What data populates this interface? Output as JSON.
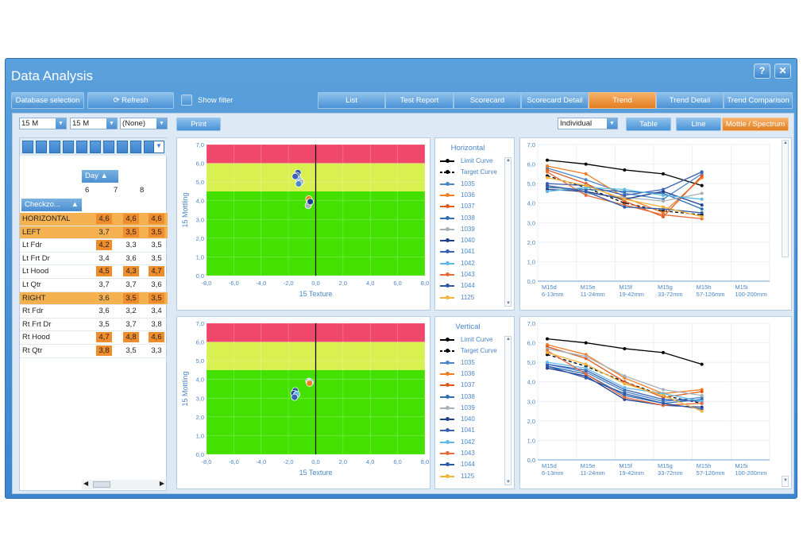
{
  "window": {
    "title": "Data Analysis",
    "help": "?",
    "close": "✕"
  },
  "toolbar": {
    "database_selection": "Database selection",
    "refresh": "Refresh",
    "show_filter": "Show filter"
  },
  "tabs": [
    "List",
    "Test Report",
    "Scorecard",
    "Scorecard Detail",
    "Trend",
    "Trend Detail",
    "Trend Comparison"
  ],
  "active_tab": "Trend",
  "filters": {
    "combo1": "15 M",
    "combo2": "15 M",
    "combo3": "(None)",
    "print": "Print",
    "mode": "Individual",
    "table": "Table",
    "line": "Line",
    "mottle": "Mottle / Spectrum"
  },
  "table": {
    "day_header": "Day",
    "check_header": "Checkzo...",
    "days": [
      "6",
      "7",
      "8"
    ],
    "rows": [
      {
        "label": "HORIZONTAL",
        "values": [
          "4,6",
          "4,6",
          "4,6"
        ],
        "hl": true,
        "or": [
          true,
          true,
          true
        ]
      },
      {
        "label": "LEFT",
        "values": [
          "3,7",
          "3,5",
          "3,5"
        ],
        "hl": true,
        "or": [
          false,
          true,
          true
        ]
      },
      {
        "label": "Lt Fdr",
        "values": [
          "4,2",
          "3,3",
          "3,5"
        ],
        "hl": false,
        "or": [
          true,
          false,
          false
        ]
      },
      {
        "label": "Lt Frt Dr",
        "values": [
          "3,4",
          "3,6",
          "3,5"
        ],
        "hl": false,
        "or": [
          false,
          false,
          false
        ]
      },
      {
        "label": "Lt Hood",
        "values": [
          "4,5",
          "4,3",
          "4,7"
        ],
        "hl": false,
        "or": [
          true,
          true,
          true
        ]
      },
      {
        "label": "Lt Qtr",
        "values": [
          "3,7",
          "3,7",
          "3,6"
        ],
        "hl": false,
        "or": [
          false,
          false,
          false
        ]
      },
      {
        "label": "RIGHT",
        "values": [
          "3,6",
          "3,5",
          "3,5"
        ],
        "hl": true,
        "or": [
          false,
          true,
          true
        ]
      },
      {
        "label": "Rt Fdr",
        "values": [
          "3,6",
          "3,2",
          "3,4"
        ],
        "hl": false,
        "or": [
          false,
          false,
          false
        ]
      },
      {
        "label": "Rt Frt Dr",
        "values": [
          "3,5",
          "3,7",
          "3,8"
        ],
        "hl": false,
        "or": [
          false,
          false,
          false
        ]
      },
      {
        "label": "Rt Hood",
        "values": [
          "4,7",
          "4,8",
          "4,6"
        ],
        "hl": false,
        "or": [
          true,
          true,
          true
        ]
      },
      {
        "label": "Rt Qtr",
        "values": [
          "3,8",
          "3,5",
          "3,3"
        ],
        "hl": false,
        "or": [
          true,
          false,
          false
        ]
      }
    ]
  },
  "legend": {
    "horizontal_title": "Horizontal",
    "vertical_title": "Vertical",
    "items": [
      {
        "label": "Limit Curve",
        "color": "#000000",
        "style": "solid"
      },
      {
        "label": "Target Curve",
        "color": "#000000",
        "style": "dashed"
      },
      {
        "label": "1035",
        "color": "#4a86c8"
      },
      {
        "label": "1036",
        "color": "#f07d22"
      },
      {
        "label": "1037",
        "color": "#e2571a"
      },
      {
        "label": "1038",
        "color": "#2f6fb3"
      },
      {
        "label": "1039",
        "color": "#a9b0b7"
      },
      {
        "label": "1040",
        "color": "#1f3f8f"
      },
      {
        "label": "1041",
        "color": "#3b5fb5"
      },
      {
        "label": "1042",
        "color": "#5fb9e6"
      },
      {
        "label": "1043",
        "color": "#e86a3a"
      },
      {
        "label": "1044",
        "color": "#2f57a8"
      },
      {
        "label": "1125",
        "color": "#f2b33a"
      }
    ]
  },
  "chart_data": [
    {
      "type": "scatter",
      "xlabel": "15 Texture",
      "ylabel": "15 Mottling",
      "xlim": [
        -8,
        8
      ],
      "ylim": [
        0,
        7
      ],
      "xticks": [
        "-8,0",
        "-6,0",
        "-4,0",
        "-2,0",
        "0,0",
        "2,0",
        "4,0",
        "6,0",
        "8,0"
      ],
      "yticks": [
        "0,0",
        "1,0",
        "2,0",
        "3,0",
        "4,0",
        "5,0",
        "6,0",
        "7,0"
      ],
      "zones": [
        {
          "from": 0,
          "to": 4.5,
          "color": "#44e000"
        },
        {
          "from": 4.5,
          "to": 6.0,
          "color": "#d8f050"
        },
        {
          "from": 6.0,
          "to": 7.0,
          "color": "#f0486a"
        }
      ],
      "points": [
        {
          "x": -1.3,
          "y": 5.5
        },
        {
          "x": -1.4,
          "y": 5.35
        },
        {
          "x": -1.2,
          "y": 5.1
        },
        {
          "x": -1.5,
          "y": 5.3
        },
        {
          "x": -1.1,
          "y": 5.0
        },
        {
          "x": -1.25,
          "y": 4.9
        },
        {
          "x": -0.5,
          "y": 4.1
        },
        {
          "x": -0.45,
          "y": 3.9
        },
        {
          "x": -0.55,
          "y": 3.75
        },
        {
          "x": -0.4,
          "y": 3.95
        }
      ]
    },
    {
      "type": "scatter",
      "xlabel": "15 Texture",
      "ylabel": "15 Mottling",
      "xlim": [
        -8,
        8
      ],
      "ylim": [
        0,
        7
      ],
      "xticks": [
        "-8,0",
        "-6,0",
        "-4,0",
        "-2,0",
        "0,0",
        "2,0",
        "4,0",
        "6,0",
        "8,0"
      ],
      "yticks": [
        "0,0",
        "1,0",
        "2,0",
        "3,0",
        "4,0",
        "5,0",
        "6,0",
        "7,0"
      ],
      "zones": [
        {
          "from": 0,
          "to": 4.5,
          "color": "#44e000"
        },
        {
          "from": 4.5,
          "to": 6.0,
          "color": "#d8f050"
        },
        {
          "from": 6.0,
          "to": 7.0,
          "color": "#f0486a"
        }
      ],
      "points": [
        {
          "x": -1.5,
          "y": 3.4
        },
        {
          "x": -1.6,
          "y": 3.25
        },
        {
          "x": -1.4,
          "y": 3.2
        },
        {
          "x": -1.55,
          "y": 3.05
        },
        {
          "x": -0.5,
          "y": 3.9
        },
        {
          "x": -0.4,
          "y": 3.85
        },
        {
          "x": -0.45,
          "y": 3.8
        }
      ]
    },
    {
      "type": "line",
      "categories": [
        "M15d 6-13mm",
        "M15e 11-24mm",
        "M15f 19-42mm",
        "M15g 33-72mm",
        "M15h 57-126mm",
        "M15i 100-200mm"
      ],
      "ylim": [
        0,
        7
      ],
      "yticks": [
        "0,0",
        "1,0",
        "2,0",
        "3,0",
        "4,0",
        "5,0",
        "6,0",
        "7,0"
      ],
      "series": [
        {
          "name": "Limit Curve",
          "color": "#000000",
          "values": [
            6.2,
            6.0,
            5.7,
            5.5,
            4.9,
            null
          ]
        },
        {
          "name": "Target Curve",
          "color": "#000000",
          "dash": true,
          "values": [
            5.4,
            4.8,
            4.0,
            3.6,
            3.4,
            null
          ]
        },
        {
          "name": "1035",
          "color": "#4a86c8",
          "values": [
            5.8,
            5.2,
            4.5,
            4.2,
            5.5,
            null
          ]
        },
        {
          "name": "1036",
          "color": "#f07d22",
          "values": [
            5.9,
            5.5,
            4.3,
            3.5,
            5.3,
            null
          ]
        },
        {
          "name": "1037",
          "color": "#e2571a",
          "values": [
            5.7,
            5.0,
            4.1,
            3.3,
            5.4,
            null
          ]
        },
        {
          "name": "1038",
          "color": "#2f6fb3",
          "values": [
            4.8,
            4.7,
            4.6,
            4.5,
            3.7,
            null
          ]
        },
        {
          "name": "1039",
          "color": "#a9b0b7",
          "values": [
            4.9,
            4.5,
            4.3,
            4.1,
            4.5,
            null
          ]
        },
        {
          "name": "1040",
          "color": "#1f3f8f",
          "values": [
            4.7,
            4.6,
            4.2,
            4.6,
            3.9,
            null
          ]
        },
        {
          "name": "1041",
          "color": "#3b5fb5",
          "values": [
            5.0,
            4.9,
            4.4,
            4.7,
            5.6,
            null
          ]
        },
        {
          "name": "1042",
          "color": "#5fb9e6",
          "values": [
            4.6,
            4.8,
            4.7,
            4.4,
            4.2,
            null
          ]
        },
        {
          "name": "1043",
          "color": "#e86a3a",
          "values": [
            5.6,
            4.4,
            3.9,
            3.4,
            3.2,
            null
          ]
        },
        {
          "name": "1044",
          "color": "#2f57a8",
          "values": [
            4.9,
            4.6,
            3.8,
            3.7,
            3.5,
            null
          ]
        },
        {
          "name": "1125",
          "color": "#f2b33a",
          "values": [
            5.3,
            4.9,
            4.2,
            3.8,
            3.3,
            null
          ]
        }
      ]
    },
    {
      "type": "line",
      "categories": [
        "M15d 6-13mm",
        "M15e 11-24mm",
        "M15f 19-42mm",
        "M15g 33-72mm",
        "M15h 57-126mm",
        "M15i 100-200mm"
      ],
      "ylim": [
        0,
        7
      ],
      "yticks": [
        "0,0",
        "1,0",
        "2,0",
        "3,0",
        "4,0",
        "5,0",
        "6,0",
        "7,0"
      ],
      "series": [
        {
          "name": "Limit Curve",
          "color": "#000000",
          "values": [
            6.2,
            6.0,
            5.7,
            5.5,
            4.9,
            null
          ]
        },
        {
          "name": "Target Curve",
          "color": "#000000",
          "dash": true,
          "values": [
            5.4,
            4.8,
            4.0,
            3.3,
            2.9,
            null
          ]
        },
        {
          "name": "1035",
          "color": "#4a86c8",
          "values": [
            4.9,
            4.5,
            3.5,
            3.0,
            3.2,
            null
          ]
        },
        {
          "name": "1036",
          "color": "#f07d22",
          "values": [
            5.9,
            5.4,
            4.2,
            3.4,
            3.6,
            null
          ]
        },
        {
          "name": "1037",
          "color": "#e2571a",
          "values": [
            5.8,
            5.2,
            4.0,
            3.2,
            3.5,
            null
          ]
        },
        {
          "name": "1038",
          "color": "#2f6fb3",
          "values": [
            4.8,
            4.4,
            3.3,
            2.9,
            3.1,
            null
          ]
        },
        {
          "name": "1039",
          "color": "#a9b0b7",
          "values": [
            5.7,
            5.3,
            4.3,
            3.6,
            3.3,
            null
          ]
        },
        {
          "name": "1040",
          "color": "#1f3f8f",
          "values": [
            4.7,
            4.3,
            3.1,
            2.8,
            2.7,
            null
          ]
        },
        {
          "name": "1041",
          "color": "#3b5fb5",
          "values": [
            4.9,
            4.6,
            3.6,
            3.1,
            3.0,
            null
          ]
        },
        {
          "name": "1042",
          "color": "#5fb9e6",
          "values": [
            5.0,
            4.7,
            3.7,
            3.4,
            3.0,
            null
          ]
        },
        {
          "name": "1043",
          "color": "#e86a3a",
          "values": [
            5.6,
            4.4,
            3.2,
            2.8,
            2.9,
            null
          ]
        },
        {
          "name": "1044",
          "color": "#2f57a8",
          "values": [
            4.8,
            4.2,
            3.4,
            2.9,
            2.6,
            null
          ]
        },
        {
          "name": "1125",
          "color": "#f2b33a",
          "values": [
            5.5,
            4.9,
            3.9,
            3.3,
            2.5,
            null
          ]
        }
      ]
    }
  ]
}
